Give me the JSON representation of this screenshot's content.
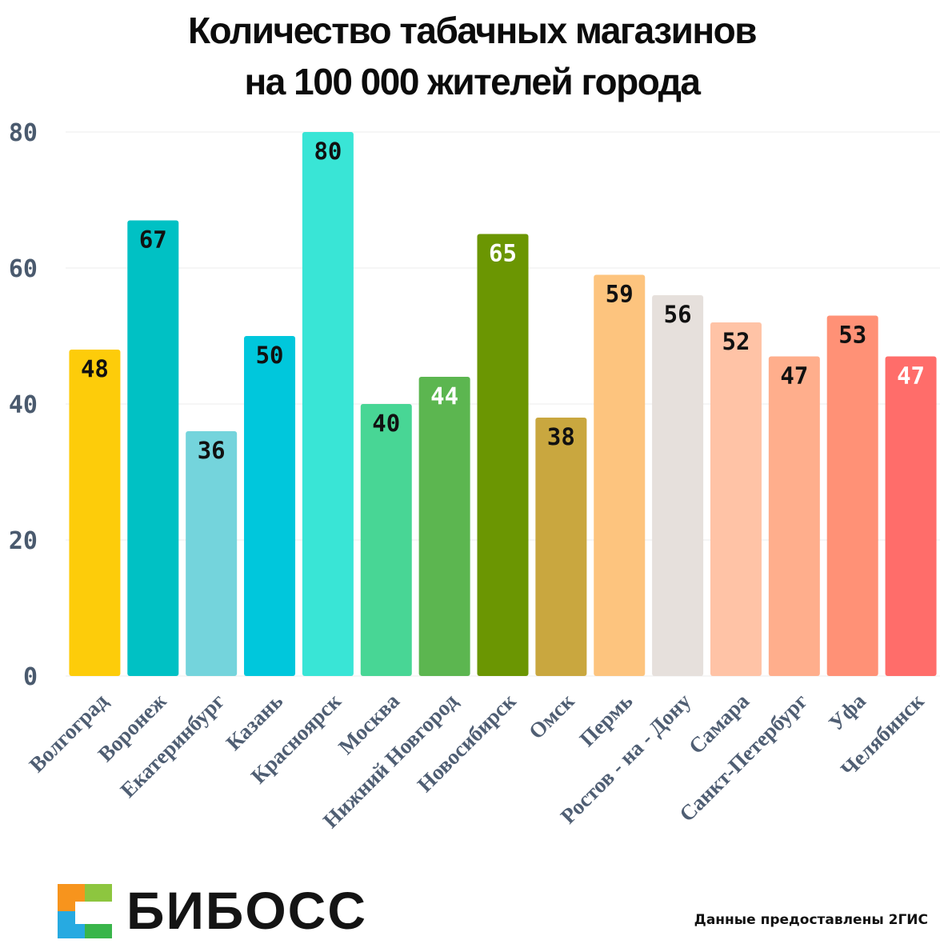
{
  "header": {
    "title_line1": "Количество табачных магазинов",
    "title_line2": "на 100 000 жителей города"
  },
  "chart_data": {
    "type": "bar",
    "categories": [
      "Волгоград",
      "Воронеж",
      "Екатеринбург",
      "Казань",
      "Красноярск",
      "Москва",
      "Нижний  Новгород",
      "Новосибирск",
      "Омск",
      "Пермь",
      "Ростов - на - Дону",
      "Самара",
      "Санкт-Петербург",
      "Уфа",
      "Челябинск"
    ],
    "values": [
      48,
      67,
      36,
      50,
      80,
      40,
      44,
      65,
      38,
      59,
      56,
      52,
      47,
      53,
      47
    ],
    "bar_colors": [
      "#fdcc0a",
      "#00c1c4",
      "#74d4dc",
      "#00c7dc",
      "#39e5d6",
      "#48d695",
      "#5cb650",
      "#6b9602",
      "#c9a73f",
      "#fdc47e",
      "#e6e0dc",
      "#ffc3a6",
      "#ffae8c",
      "#ff9176",
      "#ff6d6a"
    ],
    "label_colors": [
      "#111111",
      "#111111",
      "#111111",
      "#111111",
      "#111111",
      "#111111",
      "#ffffff",
      "#ffffff",
      "#111111",
      "#111111",
      "#111111",
      "#111111",
      "#111111",
      "#111111",
      "#ffffff"
    ],
    "ylim": [
      0,
      80
    ],
    "yticks": [
      0,
      20,
      40,
      60,
      80
    ],
    "grid": true,
    "title": "Количество табачных магазинов на 100 000 жителей города",
    "xlabel": "",
    "ylabel": ""
  },
  "brand": {
    "name": "БИБОСС",
    "logo_colors": [
      "#f7941d",
      "#8dc63f",
      "#27aae1",
      "#39b54a"
    ]
  },
  "footer": {
    "source": "Данные предоставлены 2ГИС"
  }
}
